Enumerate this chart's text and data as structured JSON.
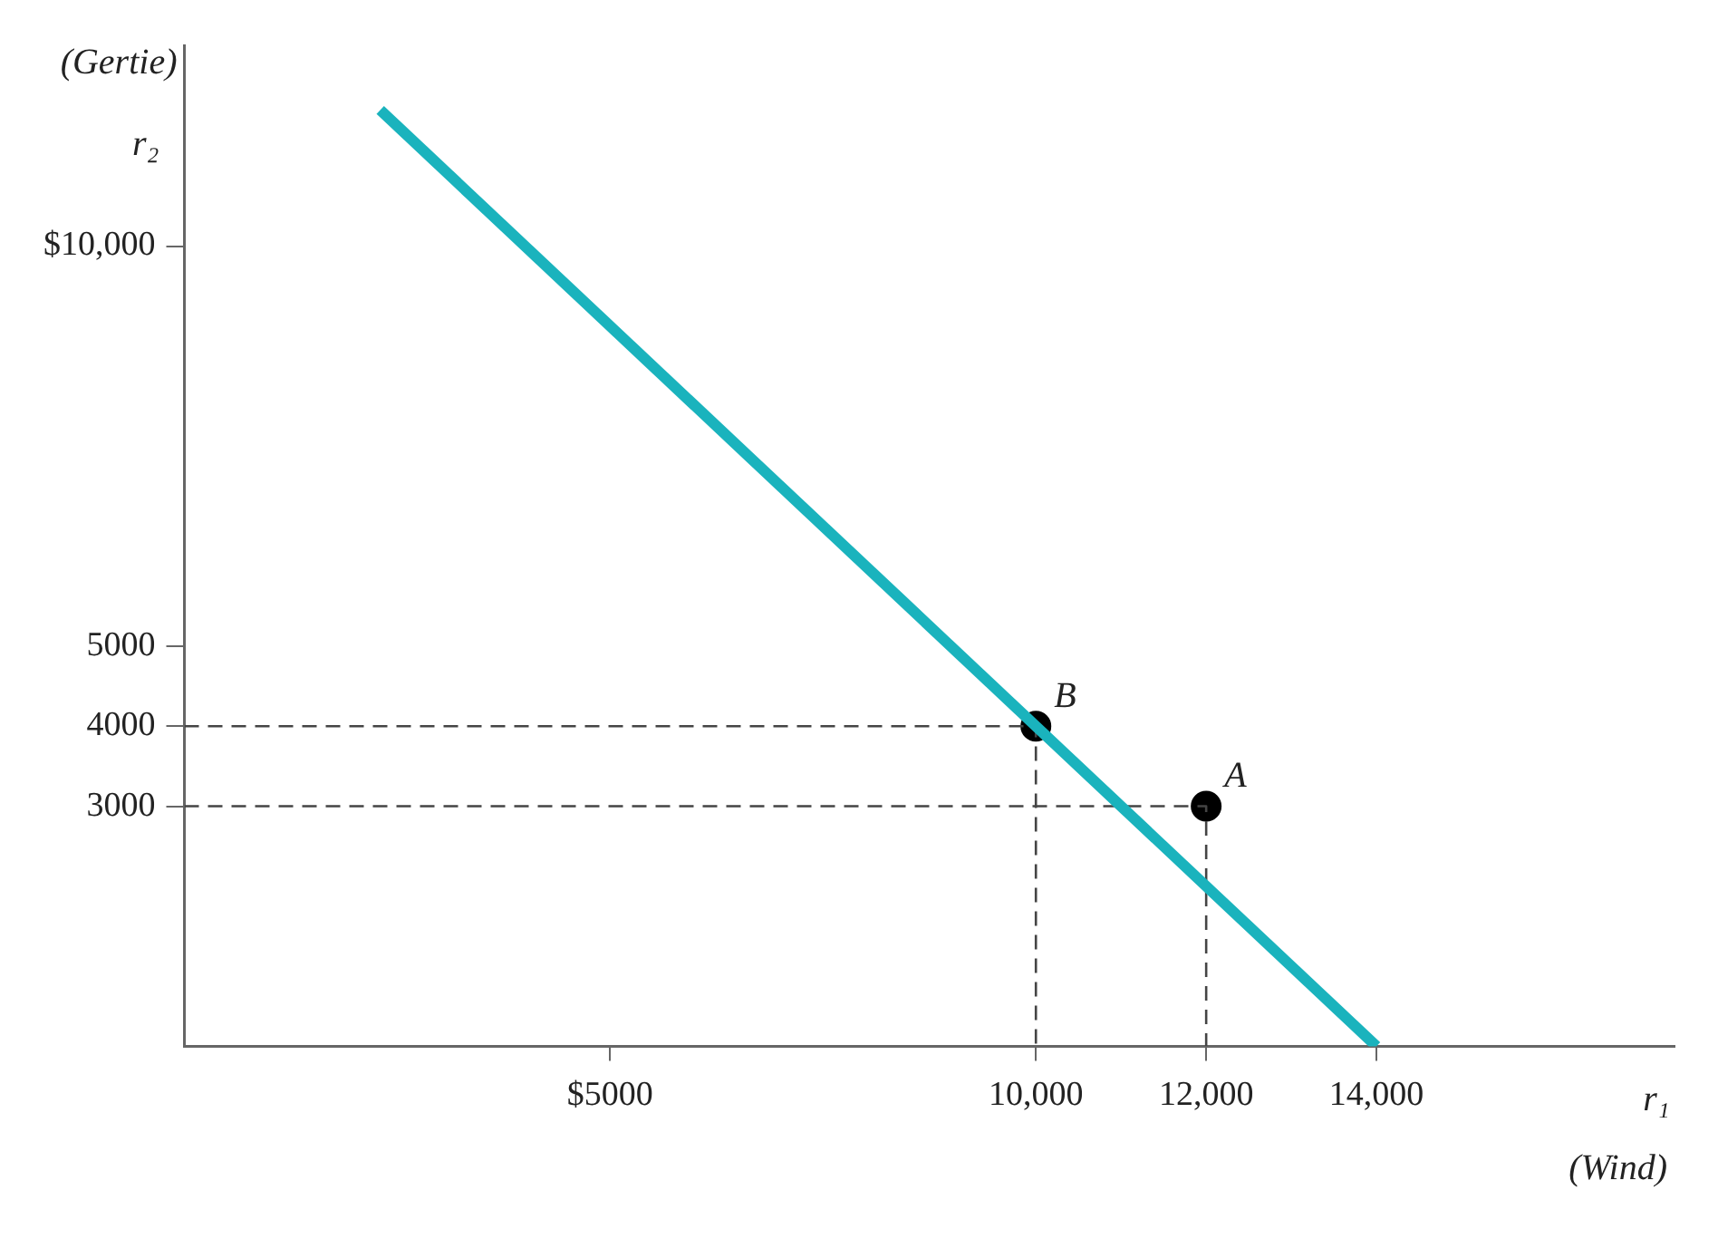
{
  "chart_data": {
    "type": "line",
    "xlabel": "r₁",
    "ylabel": "r₂",
    "annotations": [
      "(Gertie)",
      "(Wind)",
      {
        "text": "A",
        "x": 12000,
        "y": 3000
      },
      {
        "text": "B",
        "x": 10000,
        "y": 4000
      }
    ],
    "xlim": [
      0,
      17500
    ],
    "ylim": [
      0,
      12500
    ],
    "xticks": [
      {
        "value": 5000,
        "label": "$5000"
      },
      {
        "value": 10000,
        "label": "10,000"
      },
      {
        "value": 12000,
        "label": "12,000"
      },
      {
        "value": 14000,
        "label": "14,000"
      }
    ],
    "yticks": [
      3000,
      4000,
      5000,
      {
        "value": 10000,
        "label": "$10,000"
      }
    ],
    "grid": false,
    "legend": false,
    "series": [
      {
        "color": "#1ab3bd",
        "x": [
          2300,
          14000
        ],
        "values": [
          11700,
          0
        ],
        "marker": "none",
        "line_style": "solid"
      },
      {
        "type": "line",
        "color": "#444444",
        "x": [
          0,
          10000,
          10000
        ],
        "values": [
          4000,
          4000,
          0
        ],
        "marker": "none",
        "line_style": "dashed"
      },
      {
        "type": "line",
        "color": "#444444",
        "x": [
          0,
          12000,
          12000
        ],
        "values": [
          3000,
          3000,
          0
        ],
        "marker": "none",
        "line_style": "dashed"
      },
      {
        "type": "scatter",
        "color": "#000000",
        "x": [
          12000,
          10000
        ],
        "values": [
          3000,
          4000
        ],
        "marker": "circle"
      }
    ]
  }
}
